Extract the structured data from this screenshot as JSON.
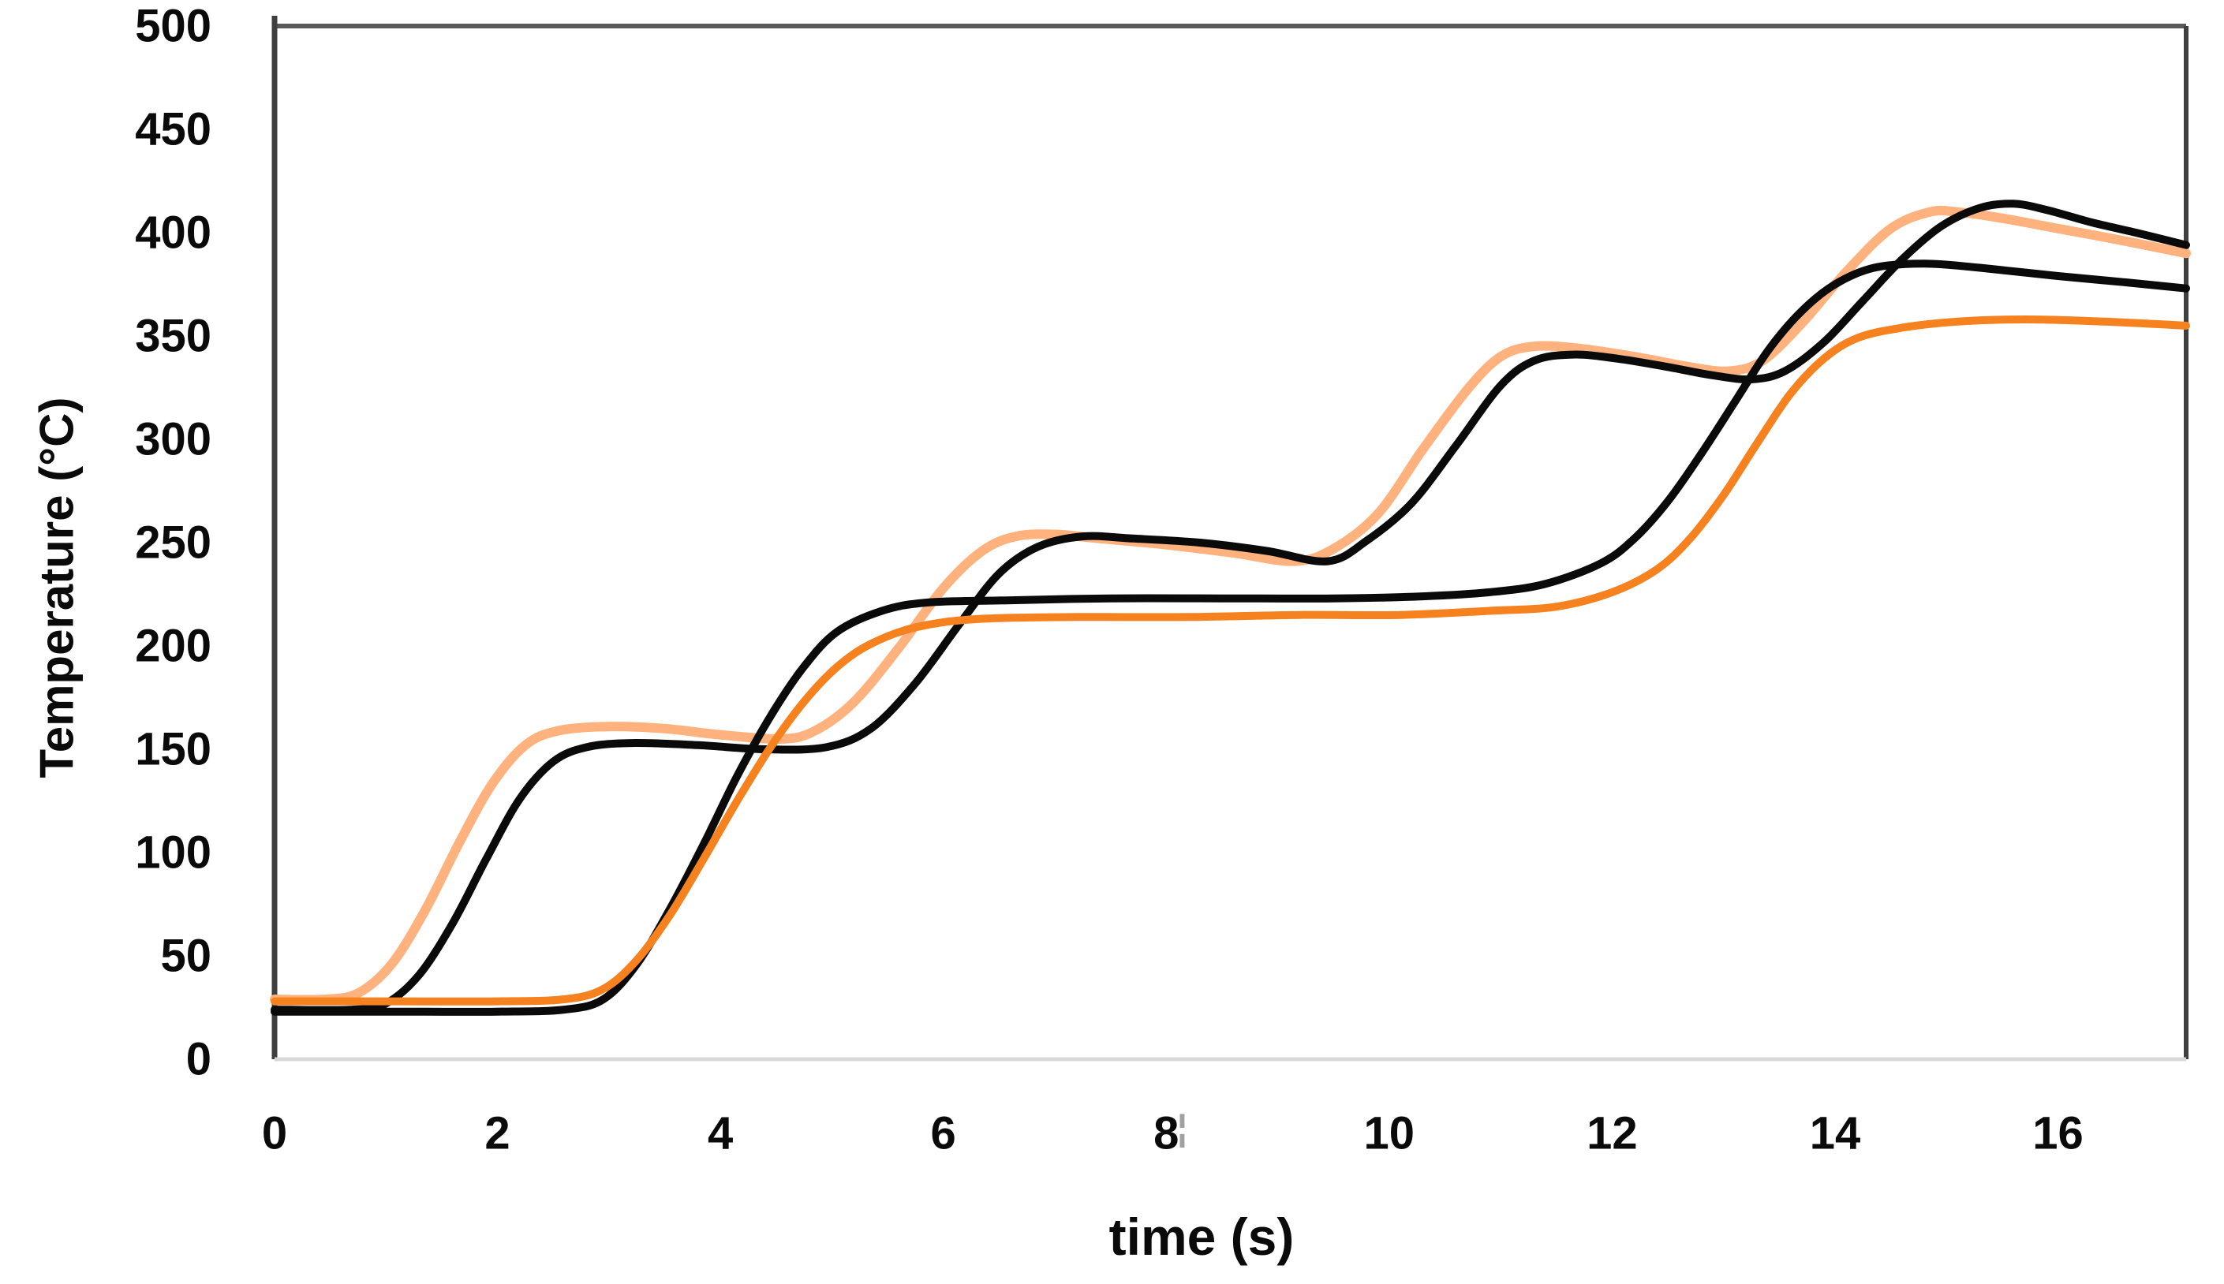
{
  "figure": {
    "background": "#ffffff",
    "border_colors": {
      "top": "#595959",
      "left": "#3f3f3f",
      "right": "#3f3f3f",
      "bottom": "#d8d8d8"
    },
    "artifact": {
      "text": "¦"
    }
  },
  "chart_data": {
    "type": "line",
    "title": "",
    "xlabel": "time (s)",
    "ylabel": "Temperature (°C)",
    "xlim": [
      0,
      17.15
    ],
    "ylim": [
      0,
      500
    ],
    "grid": false,
    "legend_position": "none",
    "x_ticks": [
      0,
      2,
      4,
      6,
      8,
      10,
      12,
      14,
      16
    ],
    "y_ticks": [
      0,
      50,
      100,
      150,
      200,
      250,
      300,
      350,
      400,
      450,
      500
    ],
    "series": [
      {
        "name": "light-orange-curve-early-response",
        "color": "#FFB27E",
        "width": 12,
        "points": [
          [
            0,
            29
          ],
          [
            0.45,
            29
          ],
          [
            0.75,
            32
          ],
          [
            1.05,
            46
          ],
          [
            1.35,
            72
          ],
          [
            1.65,
            104
          ],
          [
            1.95,
            133
          ],
          [
            2.25,
            152
          ],
          [
            2.55,
            159
          ],
          [
            3.0,
            161
          ],
          [
            3.5,
            160
          ],
          [
            4.0,
            157
          ],
          [
            4.55,
            155
          ],
          [
            4.85,
            159
          ],
          [
            5.2,
            173
          ],
          [
            5.6,
            199
          ],
          [
            6.0,
            228
          ],
          [
            6.35,
            246
          ],
          [
            6.65,
            253
          ],
          [
            7.0,
            254
          ],
          [
            7.4,
            252
          ],
          [
            8.0,
            249
          ],
          [
            8.6,
            245
          ],
          [
            9.15,
            241
          ],
          [
            9.5,
            247
          ],
          [
            9.9,
            264
          ],
          [
            10.3,
            295
          ],
          [
            10.7,
            324
          ],
          [
            11.0,
            340
          ],
          [
            11.3,
            345
          ],
          [
            11.7,
            344
          ],
          [
            12.2,
            340
          ],
          [
            12.7,
            335
          ],
          [
            13.05,
            333
          ],
          [
            13.35,
            338
          ],
          [
            13.7,
            356
          ],
          [
            14.1,
            381
          ],
          [
            14.5,
            402
          ],
          [
            14.85,
            410
          ],
          [
            15.1,
            410
          ],
          [
            15.5,
            407
          ],
          [
            16.0,
            402
          ],
          [
            16.5,
            397
          ],
          [
            17.15,
            390
          ]
        ]
      },
      {
        "name": "black-curve-early-response",
        "color": "#0a0a0a",
        "width": 10,
        "points": [
          [
            0,
            24
          ],
          [
            0.7,
            24
          ],
          [
            1.0,
            27
          ],
          [
            1.3,
            41
          ],
          [
            1.6,
            66
          ],
          [
            1.9,
            97
          ],
          [
            2.2,
            126
          ],
          [
            2.5,
            144
          ],
          [
            2.8,
            151
          ],
          [
            3.2,
            153
          ],
          [
            3.8,
            152
          ],
          [
            4.4,
            150
          ],
          [
            4.95,
            151
          ],
          [
            5.35,
            160
          ],
          [
            5.75,
            182
          ],
          [
            6.15,
            211
          ],
          [
            6.5,
            235
          ],
          [
            6.85,
            248
          ],
          [
            7.25,
            253
          ],
          [
            7.7,
            252
          ],
          [
            8.3,
            250
          ],
          [
            8.9,
            246
          ],
          [
            9.45,
            241
          ],
          [
            9.8,
            251
          ],
          [
            10.2,
            269
          ],
          [
            10.6,
            297
          ],
          [
            11.0,
            326
          ],
          [
            11.3,
            338
          ],
          [
            11.65,
            341
          ],
          [
            12.05,
            339
          ],
          [
            12.5,
            335
          ],
          [
            12.9,
            331
          ],
          [
            13.25,
            329
          ],
          [
            13.55,
            333
          ],
          [
            13.9,
            347
          ],
          [
            14.25,
            367
          ],
          [
            14.6,
            387
          ],
          [
            14.95,
            403
          ],
          [
            15.3,
            412
          ],
          [
            15.6,
            414
          ],
          [
            15.9,
            411
          ],
          [
            16.3,
            405
          ],
          [
            16.7,
            400
          ],
          [
            17.15,
            394
          ]
        ]
      },
      {
        "name": "black-curve-lagged-response",
        "color": "#0a0a0a",
        "width": 10,
        "points": [
          [
            0,
            23
          ],
          [
            1.0,
            23
          ],
          [
            2.0,
            23
          ],
          [
            2.6,
            24
          ],
          [
            2.95,
            29
          ],
          [
            3.25,
            46
          ],
          [
            3.55,
            73
          ],
          [
            3.85,
            104
          ],
          [
            4.15,
            137
          ],
          [
            4.45,
            166
          ],
          [
            4.75,
            190
          ],
          [
            5.05,
            207
          ],
          [
            5.45,
            217
          ],
          [
            5.85,
            221
          ],
          [
            6.5,
            222
          ],
          [
            7.5,
            223
          ],
          [
            8.5,
            223
          ],
          [
            9.5,
            223
          ],
          [
            10.3,
            224
          ],
          [
            10.9,
            226
          ],
          [
            11.4,
            230
          ],
          [
            11.9,
            240
          ],
          [
            12.2,
            252
          ],
          [
            12.5,
            270
          ],
          [
            12.8,
            293
          ],
          [
            13.1,
            318
          ],
          [
            13.4,
            343
          ],
          [
            13.7,
            362
          ],
          [
            14.0,
            375
          ],
          [
            14.35,
            383
          ],
          [
            14.8,
            385
          ],
          [
            15.3,
            383
          ],
          [
            16.0,
            379
          ],
          [
            16.6,
            376
          ],
          [
            17.15,
            373
          ]
        ]
      },
      {
        "name": "orange-curve-lagged-response",
        "color": "#F5821F",
        "width": 10,
        "points": [
          [
            0,
            28
          ],
          [
            1.0,
            28
          ],
          [
            2.0,
            28
          ],
          [
            2.6,
            29
          ],
          [
            2.95,
            34
          ],
          [
            3.25,
            48
          ],
          [
            3.55,
            70
          ],
          [
            3.85,
            97
          ],
          [
            4.15,
            125
          ],
          [
            4.45,
            151
          ],
          [
            4.75,
            173
          ],
          [
            5.05,
            190
          ],
          [
            5.35,
            201
          ],
          [
            5.75,
            209
          ],
          [
            6.3,
            213
          ],
          [
            7.2,
            214
          ],
          [
            8.2,
            214
          ],
          [
            9.2,
            215
          ],
          [
            10.1,
            215
          ],
          [
            10.9,
            217
          ],
          [
            11.5,
            219
          ],
          [
            12.0,
            226
          ],
          [
            12.4,
            237
          ],
          [
            12.7,
            252
          ],
          [
            13.0,
            273
          ],
          [
            13.3,
            298
          ],
          [
            13.6,
            322
          ],
          [
            13.9,
            339
          ],
          [
            14.2,
            349
          ],
          [
            14.6,
            354
          ],
          [
            15.1,
            357
          ],
          [
            15.7,
            358
          ],
          [
            16.4,
            357
          ],
          [
            17.15,
            355
          ]
        ]
      }
    ]
  }
}
